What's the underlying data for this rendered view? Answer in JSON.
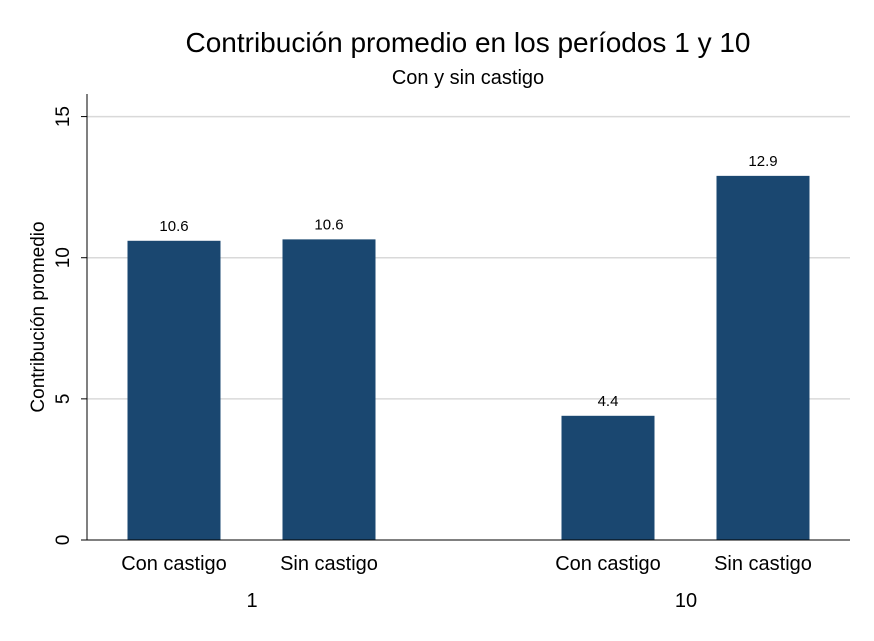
{
  "chart_data": {
    "type": "bar",
    "title": "Contribución promedio en los períodos 1 y 10",
    "subtitle": "Con y sin castigo",
    "ylabel": "Contribución promedio",
    "xlabel": "",
    "ylim": [
      0,
      15.8
    ],
    "yticks": [
      0,
      5,
      10,
      15
    ],
    "grid": true,
    "bar_color": "#1a4770",
    "grid_color": "#d9d9d9",
    "groups": [
      {
        "label": "1",
        "bars": [
          {
            "category": "Con castigo",
            "value": 10.6,
            "value_label": "10.6"
          },
          {
            "category": "Sin castigo",
            "value": 10.65,
            "value_label": "10.6"
          }
        ]
      },
      {
        "label": "10",
        "bars": [
          {
            "category": "Con castigo",
            "value": 4.4,
            "value_label": "4.4"
          },
          {
            "category": "Sin castigo",
            "value": 12.9,
            "value_label": "12.9"
          }
        ]
      }
    ]
  }
}
